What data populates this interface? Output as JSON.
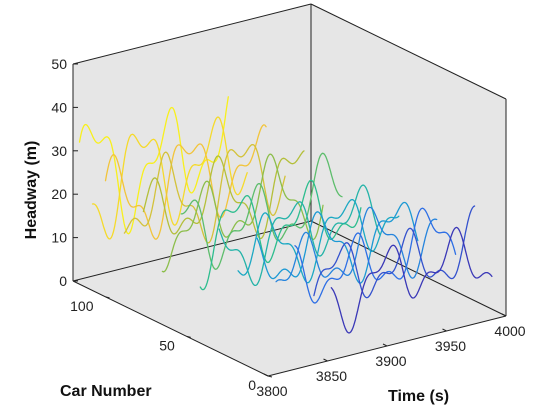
{
  "chart_data": {
    "type": "line",
    "title": "",
    "xlabel": "Time (s)",
    "ylabel": "Car Number",
    "zlabel": "Headway (m)",
    "x_ticks": [
      "3800",
      "3850",
      "3900",
      "3950",
      "4000"
    ],
    "y_ticks": [
      "0",
      "50",
      "100"
    ],
    "z_ticks": [
      "0",
      "10",
      "20",
      "30",
      "40",
      "50"
    ],
    "xlim": [
      3800,
      4000
    ],
    "ylim": [
      0,
      120
    ],
    "zlim": [
      0,
      50
    ],
    "grid": false,
    "background": "#e6e6e6",
    "colormap": [
      "#3e26a8",
      "#2e6fe5",
      "#17a3d0",
      "#2dbd8e",
      "#a4be3a",
      "#f2c43a",
      "#f9fb15"
    ],
    "series_style": "one headway-vs-time trace per car, colored by car number, oscillating about 12-24 m",
    "series": [
      {
        "car": 5,
        "time_range": [
          3860,
          3995
        ],
        "mean_headway": 14,
        "amplitude": 6
      },
      {
        "car": 12,
        "time_range": [
          3855,
          3990
        ],
        "mean_headway": 15,
        "amplitude": 6
      },
      {
        "car": 20,
        "time_range": [
          3850,
          3985
        ],
        "mean_headway": 15,
        "amplitude": 6
      },
      {
        "car": 28,
        "time_range": [
          3845,
          3980
        ],
        "mean_headway": 16,
        "amplitude": 6
      },
      {
        "car": 36,
        "time_range": [
          3840,
          3975
        ],
        "mean_headway": 16,
        "amplitude": 6
      },
      {
        "car": 44,
        "time_range": [
          3835,
          3970
        ],
        "mean_headway": 17,
        "amplitude": 6
      },
      {
        "car": 52,
        "time_range": [
          3830,
          3965
        ],
        "mean_headway": 17,
        "amplitude": 6
      },
      {
        "car": 60,
        "time_range": [
          3825,
          3960
        ],
        "mean_headway": 18,
        "amplitude": 7
      },
      {
        "car": 68,
        "time_range": [
          3820,
          3955
        ],
        "mean_headway": 18,
        "amplitude": 7
      },
      {
        "car": 76,
        "time_range": [
          3815,
          3950
        ],
        "mean_headway": 19,
        "amplitude": 7
      },
      {
        "car": 84,
        "time_range": [
          3810,
          3945
        ],
        "mean_headway": 20,
        "amplitude": 7
      },
      {
        "car": 92,
        "time_range": [
          3805,
          3940
        ],
        "mean_headway": 21,
        "amplitude": 8
      },
      {
        "car": 100,
        "time_range": [
          3800,
          3935
        ],
        "mean_headway": 22,
        "amplitude": 8
      },
      {
        "car": 108,
        "time_range": [
          3800,
          3930
        ],
        "mean_headway": 23,
        "amplitude": 9
      },
      {
        "car": 116,
        "time_range": [
          3800,
          3925
        ],
        "mean_headway": 24,
        "amplitude": 10
      }
    ]
  }
}
